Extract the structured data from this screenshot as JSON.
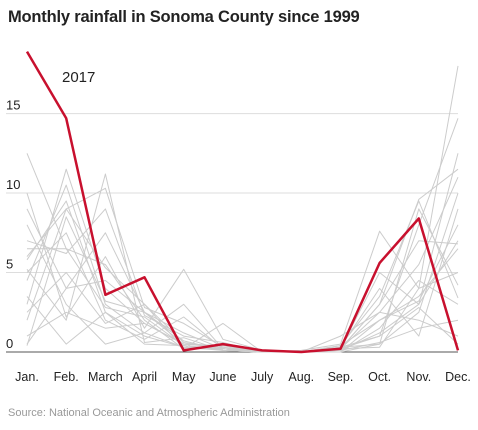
{
  "title": "Monthly rainfall in Sonoma County since 1999",
  "source": "Source: National Oceanic and Atmospheric Administration",
  "colors": {
    "highlight": "#c8102e",
    "background_series": "#cccccc",
    "grid": "#dddddd",
    "axis": "#555555",
    "text": "#222222"
  },
  "chart_data": {
    "type": "line",
    "title": "Monthly rainfall in Sonoma County since 1999",
    "xlabel": "",
    "ylabel": "",
    "categories": [
      "Jan.",
      "Feb.",
      "March",
      "April",
      "May",
      "June",
      "July",
      "Aug.",
      "Sep.",
      "Oct.",
      "Nov.",
      "Dec."
    ],
    "ylim": [
      0,
      19
    ],
    "yticks": [
      0,
      5,
      10,
      15
    ],
    "grid": true,
    "highlight_series": {
      "name": "2017",
      "values": [
        18.9,
        14.7,
        3.6,
        4.7,
        0.1,
        0.5,
        0.1,
        0.0,
        0.2,
        5.6,
        8.4,
        0.1
      ]
    },
    "background_series": [
      {
        "values": [
          12.5,
          6.5,
          2.8,
          2.2,
          0.4,
          0.2,
          0.0,
          0.0,
          0.2,
          3.0,
          9.6,
          11.5
        ]
      },
      {
        "values": [
          6.0,
          9.0,
          10.3,
          2.8,
          1.8,
          0.3,
          0.0,
          0.1,
          0.5,
          7.6,
          4.0,
          18.0
        ]
      },
      {
        "values": [
          3.0,
          11.5,
          4.0,
          1.8,
          0.5,
          0.4,
          0.0,
          0.0,
          0.3,
          1.0,
          8.0,
          14.7
        ]
      },
      {
        "values": [
          5.2,
          2.0,
          11.2,
          0.6,
          0.9,
          0.1,
          0.0,
          0.0,
          0.0,
          2.0,
          3.5,
          6.5
        ]
      },
      {
        "values": [
          2.0,
          9.0,
          5.3,
          3.0,
          0.6,
          0.2,
          0.0,
          0.0,
          0.2,
          5.0,
          3.0,
          12.5
        ]
      },
      {
        "values": [
          7.0,
          6.2,
          9.0,
          2.3,
          1.0,
          0.6,
          0.0,
          0.0,
          0.3,
          0.5,
          2.5,
          10.0
        ]
      },
      {
        "values": [
          4.5,
          10.5,
          3.0,
          1.2,
          3.0,
          0.2,
          0.0,
          0.0,
          0.4,
          3.5,
          9.5,
          3.4
        ]
      },
      {
        "values": [
          0.5,
          4.0,
          7.5,
          2.5,
          0.7,
          0.1,
          0.0,
          0.0,
          0.1,
          1.2,
          3.0,
          7.0
        ]
      },
      {
        "values": [
          10.0,
          2.2,
          6.0,
          1.5,
          5.2,
          0.8,
          0.1,
          0.0,
          0.2,
          2.5,
          5.5,
          11.0
        ]
      },
      {
        "values": [
          5.8,
          9.5,
          2.5,
          1.0,
          0.3,
          0.2,
          0.0,
          0.0,
          0.1,
          0.6,
          1.5,
          2.0
        ]
      },
      {
        "values": [
          6.5,
          6.5,
          5.5,
          2.0,
          0.2,
          1.8,
          0.0,
          0.0,
          0.3,
          4.0,
          1.0,
          9.0
        ]
      },
      {
        "values": [
          0.4,
          8.5,
          3.2,
          2.5,
          1.2,
          0.2,
          0.0,
          0.0,
          0.2,
          3.0,
          7.0,
          6.8
        ]
      },
      {
        "values": [
          3.5,
          0.5,
          2.5,
          0.5,
          0.4,
          0.1,
          0.0,
          0.0,
          1.0,
          2.5,
          2.0,
          1.0
        ]
      },
      {
        "values": [
          1.0,
          2.5,
          1.5,
          1.8,
          0.5,
          0.3,
          0.0,
          0.0,
          0.0,
          1.5,
          4.5,
          3.0
        ]
      },
      {
        "values": [
          8.0,
          3.0,
          0.5,
          1.2,
          0.3,
          0.1,
          0.0,
          0.0,
          0.2,
          0.3,
          4.0,
          5.0
        ]
      },
      {
        "values": [
          5.0,
          7.5,
          2.0,
          0.8,
          2.2,
          0.2,
          0.0,
          0.0,
          0.4,
          2.0,
          3.2,
          8.0
        ]
      },
      {
        "values": [
          9.0,
          4.0,
          4.5,
          2.5,
          0.5,
          0.4,
          0.0,
          0.0,
          0.2,
          1.0,
          2.8,
          0.5
        ]
      },
      {
        "values": [
          2.5,
          5.0,
          1.8,
          3.0,
          0.2,
          0.2,
          0.0,
          0.0,
          0.0,
          0.5,
          9.0,
          4.2
        ]
      }
    ]
  }
}
